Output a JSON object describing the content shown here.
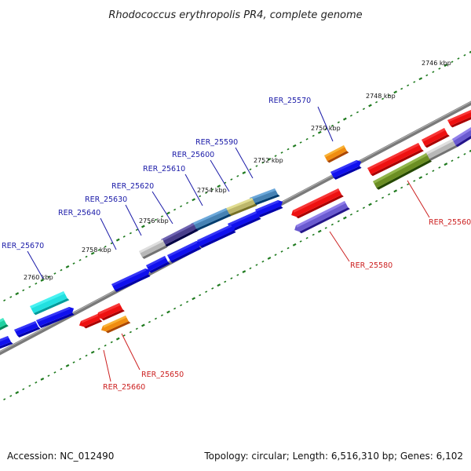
{
  "title": "Rhodococcus erythropolis PR4, complete genome",
  "footer": {
    "accession": "Accession: NC_012490",
    "summary": "Topology: circular; Length: 6,516,310 bp; Genes: 6,102"
  },
  "colors": {
    "backbone": "#7a7a7a",
    "tick": "#1e7a1e",
    "label_forward": "#1a1aa8",
    "label_reverse": "#cc2020"
  },
  "scale_labels": [
    "2746 kbp",
    "2748 kbp",
    "2750 kbp",
    "2752 kbp",
    "2754 kbp",
    "2756 kbp",
    "2758 kbp",
    "2760 kbp"
  ],
  "gene_labels": {
    "forward": [
      "RER_25570",
      "RER_25590",
      "RER_25600",
      "RER_25610",
      "RER_25620",
      "RER_25630",
      "RER_25640",
      "RER_25670"
    ],
    "reverse": [
      "RER_25560",
      "RER_25580",
      "RER_25650",
      "RER_25660"
    ]
  },
  "feature_colors": {
    "blue": "#1010ee",
    "red": "#ee1010",
    "orange": "#f08c10",
    "purple": "#6a5ad0",
    "olive": "#6b8e23",
    "gray": "#b8b8b8",
    "steelblue": "#4682b4",
    "darkslate": "#483d8b",
    "khaki": "#bdb76b",
    "cyan": "#22e0e0",
    "teal": "#20d0a0"
  }
}
